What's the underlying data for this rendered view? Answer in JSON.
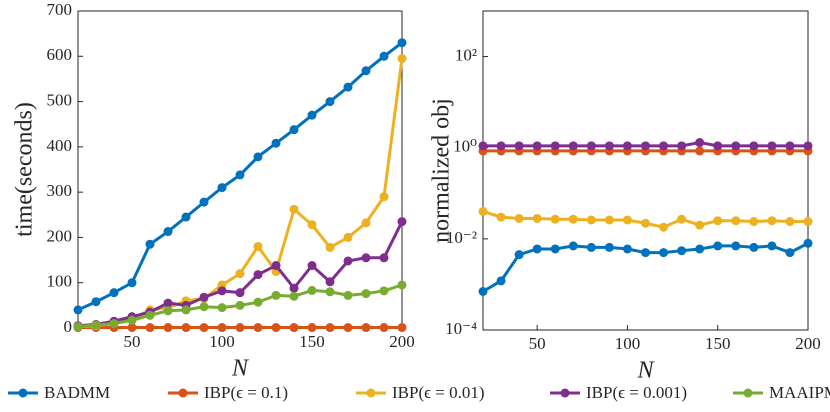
{
  "chart_data": [
    {
      "type": "line",
      "ylabel": "time(seconds)",
      "xlabel": "N",
      "x": [
        20,
        30,
        40,
        50,
        60,
        70,
        80,
        90,
        100,
        110,
        120,
        130,
        140,
        150,
        160,
        170,
        180,
        190,
        200
      ],
      "xlim": [
        20,
        200
      ],
      "xticks": [
        50,
        100,
        150,
        200
      ],
      "ylim": [
        0,
        700
      ],
      "yticks": [
        0,
        100,
        200,
        300,
        400,
        500,
        600,
        700
      ],
      "series": [
        {
          "name": "BADMM",
          "color": "#0072BD",
          "values": [
            40,
            58,
            78,
            100,
            185,
            213,
            245,
            278,
            310,
            338,
            378,
            408,
            438,
            470,
            500,
            532,
            568,
            600,
            630
          ]
        },
        {
          "name": "IBP(ϵ = 0.1)",
          "color": "#D95319",
          "values": [
            1,
            1,
            1,
            1,
            1,
            1,
            1,
            1,
            1,
            1,
            1,
            1,
            1,
            1,
            1,
            1,
            1,
            1,
            1
          ]
        },
        {
          "name": "IBP(ϵ = 0.01)",
          "color": "#EDB120",
          "values": [
            3,
            5,
            10,
            20,
            40,
            45,
            60,
            65,
            95,
            120,
            180,
            125,
            262,
            228,
            178,
            200,
            232,
            290,
            595
          ]
        },
        {
          "name": "IBP(ϵ = 0.001)",
          "color": "#7E2F8E",
          "values": [
            5,
            8,
            15,
            25,
            35,
            55,
            50,
            68,
            82,
            78,
            118,
            138,
            88,
            138,
            102,
            148,
            155,
            155,
            235
          ]
        },
        {
          "name": "MAAIPM",
          "color": "#77AC30",
          "values": [
            3,
            7,
            10,
            17,
            28,
            38,
            40,
            47,
            45,
            50,
            57,
            72,
            70,
            83,
            80,
            72,
            76,
            82,
            95
          ]
        }
      ]
    },
    {
      "type": "line",
      "ylabel": "normalized obj",
      "xlabel": "N",
      "ylog": true,
      "x": [
        20,
        30,
        40,
        50,
        60,
        70,
        80,
        90,
        100,
        110,
        120,
        130,
        140,
        150,
        160,
        170,
        180,
        190,
        200
      ],
      "xlim": [
        20,
        200
      ],
      "xticks": [
        50,
        100,
        150,
        200
      ],
      "ylim": [
        0.0001,
        1000
      ],
      "yticks": [
        {
          "value": 0.0001,
          "label": "10⁻⁴"
        },
        {
          "value": 0.01,
          "label": "10⁻²"
        },
        {
          "value": 1,
          "label": "10⁰"
        },
        {
          "value": 100,
          "label": "10²"
        }
      ],
      "series": [
        {
          "name": "BADMM",
          "color": "#0072BD",
          "values": [
            0.0007,
            0.0012,
            0.0045,
            0.006,
            0.006,
            0.007,
            0.0065,
            0.0065,
            0.006,
            0.005,
            0.005,
            0.0055,
            0.006,
            0.007,
            0.007,
            0.0065,
            0.007,
            0.005,
            0.008
          ]
        },
        {
          "name": "IBP(ϵ = 0.1)",
          "color": "#D95319",
          "values": [
            0.85,
            0.85,
            0.85,
            0.85,
            0.85,
            0.85,
            0.85,
            0.85,
            0.85,
            0.85,
            0.85,
            0.85,
            0.85,
            0.85,
            0.85,
            0.85,
            0.85,
            0.85,
            0.85
          ]
        },
        {
          "name": "IBP(ϵ = 0.01)",
          "color": "#EDB120",
          "values": [
            0.04,
            0.03,
            0.028,
            0.028,
            0.027,
            0.027,
            0.026,
            0.026,
            0.026,
            0.022,
            0.018,
            0.027,
            0.02,
            0.025,
            0.025,
            0.024,
            0.025,
            0.024,
            0.024
          ]
        },
        {
          "name": "IBP(ϵ = 0.001)",
          "color": "#7E2F8E",
          "values": [
            1.1,
            1.1,
            1.1,
            1.1,
            1.1,
            1.1,
            1.1,
            1.1,
            1.1,
            1.1,
            1.1,
            1.1,
            1.3,
            1.1,
            1.1,
            1.1,
            1.1,
            1.1,
            1.1
          ]
        }
      ]
    }
  ]
}
